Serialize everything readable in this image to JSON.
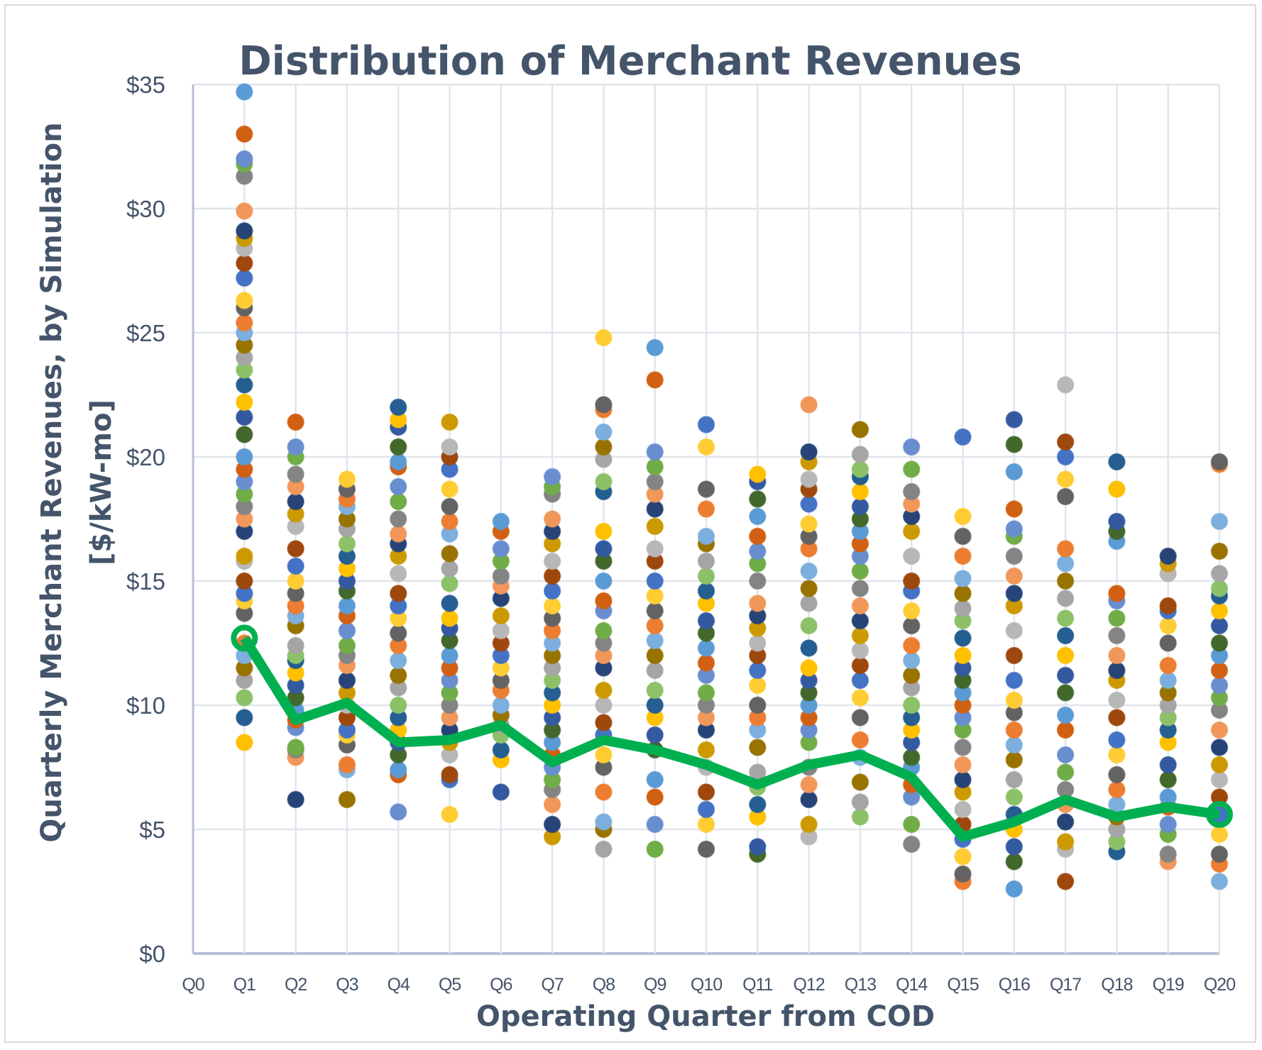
{
  "chart_data": {
    "type": "scatter",
    "title": "Distribution of Merchant Revenues",
    "xlabel": "Operating Quarter from COD",
    "ylabel_line1": "Quarterly Merchant Revenues, by Simulation",
    "ylabel_line2": "[$/kW-mo]",
    "categories": [
      "Q0",
      "Q1",
      "Q2",
      "Q3",
      "Q4",
      "Q5",
      "Q6",
      "Q7",
      "Q8",
      "Q9",
      "Q10",
      "Q11",
      "Q12",
      "Q13",
      "Q14",
      "Q15",
      "Q16",
      "Q17",
      "Q18",
      "Q19",
      "Q20"
    ],
    "y_ticks": [
      "$0",
      "$5",
      "$10",
      "$15",
      "$20",
      "$25",
      "$30",
      "$35"
    ],
    "y_tick_values": [
      0,
      5,
      10,
      15,
      20,
      25,
      30,
      35
    ],
    "ylim": [
      0,
      35
    ],
    "grid": true,
    "legend": "none",
    "simulation_colors": [
      "#4472C4",
      "#ED7D31",
      "#A5A5A5",
      "#FFC000",
      "#5B9BD5",
      "#70AD47",
      "#264478",
      "#9E480E",
      "#636363",
      "#997300",
      "#255E91",
      "#43682B",
      "#698ED0",
      "#F1975A",
      "#B7B7B7",
      "#FFCD33",
      "#7CAFDD",
      "#8CC168",
      "#335AA1",
      "#D26012",
      "#848484",
      "#CC9A00"
    ],
    "line_color": "#00B050",
    "scatter": {
      "Q1": [
        34.7,
        33.0,
        32.0,
        31.8,
        31.3,
        29.9,
        29.1,
        28.8,
        28.4,
        27.8,
        27.2,
        26.3,
        26.0,
        25.4,
        25.0,
        24.5,
        24.0,
        23.5,
        22.9,
        22.2,
        21.6,
        20.9,
        20.0,
        19.5,
        19.0,
        18.5,
        18.0,
        17.5,
        17.0,
        16.0,
        15.8,
        15.0,
        14.5,
        14.2,
        13.7,
        12.5,
        12.0,
        11.5,
        11.0,
        10.3,
        9.5,
        8.5
      ],
      "Q2": [
        21.4,
        20.4,
        20.0,
        19.3,
        18.8,
        18.2,
        17.7,
        17.2,
        16.3,
        15.6,
        15.0,
        14.5,
        14.0,
        13.6,
        13.2,
        12.4,
        12.0,
        11.8,
        11.3,
        10.8,
        10.3,
        9.8,
        9.4,
        9.1,
        8.3,
        8.2,
        7.9,
        6.2
      ],
      "Q3": [
        19.1,
        18.7,
        18.3,
        18.0,
        17.5,
        17.1,
        16.5,
        16.0,
        15.5,
        15.0,
        14.6,
        14.0,
        13.6,
        13.0,
        12.4,
        12.0,
        11.6,
        11.0,
        10.5,
        10.0,
        9.5,
        9.0,
        8.8,
        8.4,
        7.6,
        7.4,
        6.2
      ],
      "Q4": [
        22.0,
        21.5,
        21.2,
        20.4,
        19.8,
        19.6,
        18.8,
        18.2,
        17.5,
        16.9,
        16.5,
        16.0,
        15.3,
        14.5,
        14.0,
        13.5,
        12.9,
        12.4,
        11.8,
        11.2,
        10.7,
        10.0,
        9.5,
        9.0,
        8.5,
        8.0,
        7.4,
        7.2,
        5.7
      ],
      "Q5": [
        21.4,
        20.4,
        20.0,
        19.5,
        18.7,
        18.0,
        17.4,
        16.9,
        16.1,
        15.5,
        14.9,
        14.1,
        13.5,
        13.1,
        12.6,
        12.0,
        11.5,
        11.0,
        10.5,
        10.0,
        9.5,
        9.0,
        8.5,
        8.0,
        7.2,
        7.0,
        5.6
      ],
      "Q6": [
        17.4,
        17.0,
        16.3,
        15.8,
        15.2,
        14.8,
        14.3,
        13.6,
        13.0,
        12.5,
        12.0,
        11.5,
        11.0,
        10.6,
        10.0,
        9.6,
        9.2,
        8.8,
        8.2,
        7.8,
        6.5
      ],
      "Q7": [
        19.2,
        18.8,
        18.5,
        17.5,
        17.0,
        16.5,
        15.8,
        15.2,
        14.6,
        14.0,
        13.5,
        13.0,
        12.5,
        12.0,
        11.5,
        11.0,
        10.5,
        10.0,
        9.5,
        9.0,
        8.5,
        8.0,
        7.5,
        7.0,
        6.6,
        6.0,
        5.2,
        4.7
      ],
      "Q8": [
        24.8,
        22.1,
        21.9,
        21.0,
        20.4,
        19.9,
        19.0,
        18.6,
        17.0,
        16.3,
        15.8,
        15.0,
        14.2,
        13.8,
        13.0,
        12.5,
        12.0,
        11.5,
        10.6,
        10.0,
        9.3,
        8.8,
        8.0,
        7.5,
        6.5,
        5.3,
        5.0,
        4.2
      ],
      "Q9": [
        24.4,
        23.1,
        20.2,
        19.6,
        19.0,
        18.5,
        17.9,
        17.2,
        16.3,
        15.8,
        15.0,
        14.4,
        13.8,
        13.2,
        12.6,
        12.0,
        11.4,
        10.6,
        10.0,
        9.5,
        8.8,
        8.2,
        7.0,
        6.3,
        5.2,
        4.2
      ],
      "Q10": [
        21.3,
        20.4,
        18.7,
        17.9,
        16.8,
        16.5,
        15.8,
        15.2,
        14.6,
        14.1,
        13.4,
        12.9,
        12.3,
        11.7,
        11.2,
        10.5,
        10.0,
        9.5,
        9.0,
        8.2,
        7.5,
        6.5,
        5.8,
        5.2,
        4.2
      ],
      "Q11": [
        19.3,
        19.0,
        18.3,
        17.6,
        16.8,
        16.2,
        15.7,
        15.0,
        14.1,
        13.6,
        13.1,
        12.5,
        12.0,
        11.4,
        10.8,
        10.0,
        9.5,
        9.0,
        8.3,
        7.3,
        6.7,
        6.0,
        5.5,
        4.3,
        4.0
      ],
      "Q12": [
        22.1,
        20.2,
        19.8,
        19.1,
        18.7,
        18.1,
        17.3,
        16.8,
        16.3,
        15.4,
        14.7,
        14.1,
        13.2,
        12.3,
        11.5,
        11.0,
        10.5,
        10.0,
        9.5,
        9.0,
        8.5,
        7.5,
        6.8,
        6.2,
        5.2,
        4.7
      ],
      "Q13": [
        21.1,
        20.1,
        19.5,
        19.2,
        18.6,
        18.0,
        17.5,
        17.0,
        16.5,
        16.0,
        15.4,
        14.7,
        14.0,
        13.4,
        12.8,
        12.2,
        11.6,
        11.0,
        10.3,
        9.5,
        8.6,
        7.9,
        6.9,
        6.1,
        5.5
      ],
      "Q14": [
        20.4,
        19.5,
        18.6,
        18.1,
        17.6,
        17.0,
        16.0,
        15.0,
        14.6,
        13.8,
        13.2,
        12.4,
        11.8,
        11.2,
        10.7,
        10.0,
        9.5,
        9.0,
        8.5,
        7.9,
        7.5,
        6.8,
        6.3,
        5.2,
        4.4
      ],
      "Q15": [
        20.8,
        17.6,
        16.8,
        16.0,
        15.1,
        14.5,
        13.9,
        13.4,
        12.7,
        12.0,
        11.5,
        11.0,
        10.5,
        10.0,
        9.5,
        9.0,
        8.3,
        7.6,
        7.0,
        6.5,
        5.8,
        5.2,
        4.6,
        3.9,
        3.2,
        2.9
      ],
      "Q16": [
        21.5,
        20.5,
        19.4,
        17.9,
        17.1,
        16.8,
        16.0,
        15.2,
        14.5,
        14.0,
        13.0,
        12.0,
        11.0,
        10.2,
        9.7,
        9.0,
        8.4,
        7.8,
        7.0,
        6.3,
        5.6,
        5.0,
        4.3,
        3.7,
        2.6
      ],
      "Q17": [
        22.9,
        20.6,
        20.0,
        19.1,
        18.4,
        16.3,
        15.7,
        15.0,
        14.3,
        13.5,
        12.8,
        12.0,
        11.2,
        10.5,
        9.6,
        9.0,
        8.0,
        7.3,
        6.6,
        6.0,
        5.3,
        4.5,
        4.2,
        2.9
      ],
      "Q18": [
        19.8,
        18.7,
        17.4,
        17.0,
        16.6,
        14.5,
        14.2,
        13.5,
        12.8,
        12.0,
        11.4,
        11.0,
        10.2,
        9.5,
        8.6,
        8.0,
        7.2,
        6.6,
        6.0,
        5.5,
        5.0,
        4.5,
        4.1
      ],
      "Q19": [
        16.0,
        15.7,
        15.3,
        14.0,
        13.8,
        13.2,
        12.5,
        11.6,
        11.0,
        10.5,
        10.0,
        9.5,
        9.0,
        8.5,
        7.6,
        7.0,
        6.3,
        5.9,
        5.2,
        4.8,
        4.0,
        3.7
      ],
      "Q20": [
        19.8,
        19.7,
        17.4,
        16.2,
        15.3,
        14.7,
        14.4,
        13.8,
        13.2,
        12.5,
        12.0,
        11.4,
        10.8,
        10.3,
        9.8,
        9.0,
        8.3,
        7.6,
        7.0,
        6.3,
        5.6,
        4.8,
        4.0,
        3.6,
        2.9
      ]
    },
    "line": {
      "x": [
        "Q1",
        "Q2",
        "Q3",
        "Q4",
        "Q5",
        "Q6",
        "Q7",
        "Q8",
        "Q9",
        "Q10",
        "Q11",
        "Q12",
        "Q13",
        "Q14",
        "Q15",
        "Q16",
        "Q17",
        "Q18",
        "Q19",
        "Q20"
      ],
      "y": [
        12.7,
        9.4,
        10.1,
        8.5,
        8.6,
        9.2,
        7.7,
        8.6,
        8.2,
        7.6,
        6.8,
        7.6,
        8.0,
        7.1,
        4.7,
        5.3,
        6.2,
        5.5,
        5.9,
        5.6
      ]
    }
  }
}
